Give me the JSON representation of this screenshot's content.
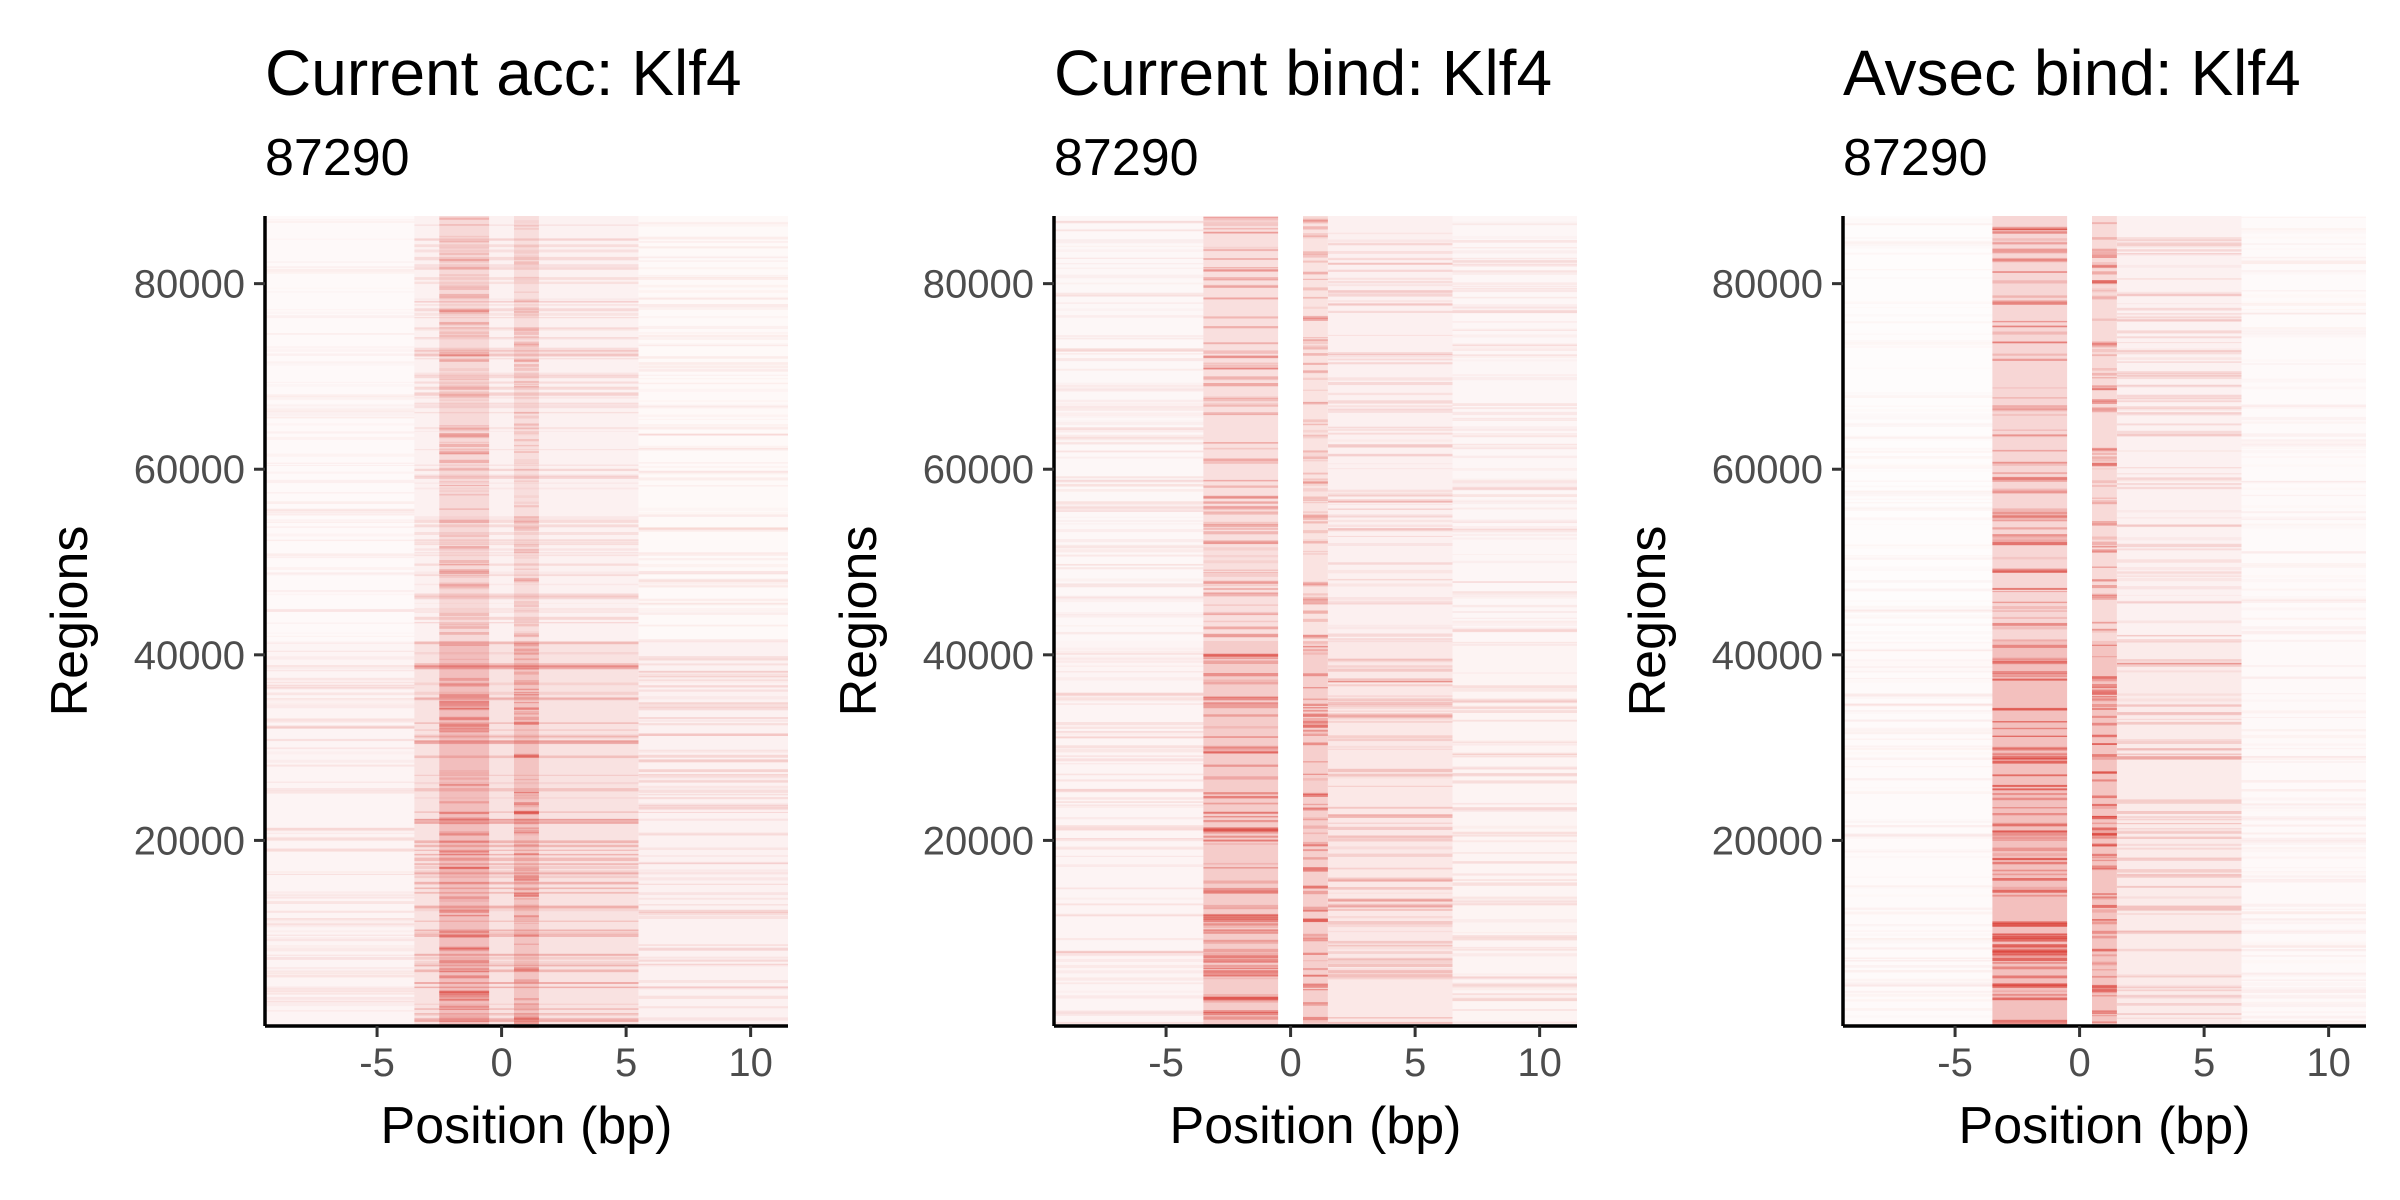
{
  "chart_data": [
    {
      "type": "heatmap",
      "title": "Current acc: Klf4",
      "subtitle": "87290",
      "xlabel": "Position (bp)",
      "ylabel": "Regions",
      "xlim": [
        -9.5,
        11.5
      ],
      "ylim": [
        0,
        87290
      ],
      "x_ticks": [
        -5,
        0,
        5,
        10
      ],
      "x_tick_labels": [
        "-5",
        "0",
        "5",
        "10"
      ],
      "y_ticks": [
        20000,
        40000,
        60000,
        80000
      ],
      "y_tick_labels": [
        "20000",
        "40000",
        "60000",
        "80000"
      ],
      "color": "#d73027",
      "blocks": [
        {
          "y": [
            0,
            41500
          ],
          "x": [
            -3.5,
            5.5
          ],
          "intensity": 0.26
        },
        {
          "y": [
            0,
            41500
          ],
          "x": [
            -2.5,
            -0.5
          ],
          "intensity": 0.36
        },
        {
          "y": [
            0,
            41500
          ],
          "x": [
            0.5,
            1.5
          ],
          "intensity": 0.3
        },
        {
          "y": [
            0,
            41500
          ],
          "x": [
            5.5,
            11.5
          ],
          "intensity": 0.12
        },
        {
          "y": [
            0,
            41500
          ],
          "x": [
            -9.5,
            -3.5
          ],
          "intensity": 0.09
        },
        {
          "y": [
            41500,
            87290
          ],
          "x": [
            -3.5,
            5.5
          ],
          "intensity": 0.12
        },
        {
          "y": [
            41500,
            87290
          ],
          "x": [
            -2.5,
            -0.5
          ],
          "intensity": 0.22
        },
        {
          "y": [
            41500,
            87290
          ],
          "x": [
            0.5,
            1.5
          ],
          "intensity": 0.18
        },
        {
          "y": [
            41500,
            87290
          ],
          "x": [
            5.5,
            11.5
          ],
          "intensity": 0.06
        },
        {
          "y": [
            41500,
            87290
          ],
          "x": [
            -9.5,
            -3.5
          ],
          "intensity": 0.05
        }
      ]
    },
    {
      "type": "heatmap",
      "title": "Current bind: Klf4",
      "subtitle": "87290",
      "xlabel": "Position (bp)",
      "ylabel": "Regions",
      "xlim": [
        -9.5,
        11.5
      ],
      "ylim": [
        0,
        87290
      ],
      "x_ticks": [
        -5,
        0,
        5,
        10
      ],
      "x_tick_labels": [
        "-5",
        "0",
        "5",
        "10"
      ],
      "y_ticks": [
        20000,
        40000,
        60000,
        80000
      ],
      "y_tick_labels": [
        "20000",
        "40000",
        "60000",
        "80000"
      ],
      "color": "#d73027",
      "blocks": [
        {
          "y": [
            0,
            41500
          ],
          "x": [
            -3.5,
            -0.5
          ],
          "intensity": 0.45
        },
        {
          "y": [
            0,
            41500
          ],
          "x": [
            0.5,
            1.5
          ],
          "intensity": 0.42
        },
        {
          "y": [
            0,
            41500
          ],
          "x": [
            1.5,
            6.5
          ],
          "intensity": 0.2
        },
        {
          "y": [
            0,
            41500
          ],
          "x": [
            6.5,
            11.5
          ],
          "intensity": 0.1
        },
        {
          "y": [
            0,
            41500
          ],
          "x": [
            -9.5,
            -3.5
          ],
          "intensity": 0.09
        },
        {
          "y": [
            41500,
            87290
          ],
          "x": [
            -3.5,
            -0.5
          ],
          "intensity": 0.28
        },
        {
          "y": [
            41500,
            87290
          ],
          "x": [
            0.5,
            1.5
          ],
          "intensity": 0.25
        },
        {
          "y": [
            41500,
            87290
          ],
          "x": [
            1.5,
            6.5
          ],
          "intensity": 0.13
        },
        {
          "y": [
            41500,
            87290
          ],
          "x": [
            6.5,
            11.5
          ],
          "intensity": 0.08
        },
        {
          "y": [
            41500,
            87290
          ],
          "x": [
            -9.5,
            -3.5
          ],
          "intensity": 0.07
        }
      ]
    },
    {
      "type": "heatmap",
      "title": "Avsec bind: Klf4",
      "subtitle": "87290",
      "xlabel": "Position (bp)",
      "ylabel": "Regions",
      "xlim": [
        -9.5,
        11.5
      ],
      "ylim": [
        0,
        87290
      ],
      "x_ticks": [
        -5,
        0,
        5,
        10
      ],
      "x_tick_labels": [
        "-5",
        "0",
        "5",
        "10"
      ],
      "y_ticks": [
        20000,
        40000,
        60000,
        80000
      ],
      "y_tick_labels": [
        "20000",
        "40000",
        "60000",
        "80000"
      ],
      "color": "#d73027",
      "blocks": [
        {
          "y": [
            0,
            41500
          ],
          "x": [
            -3.5,
            -0.5
          ],
          "intensity": 0.55
        },
        {
          "y": [
            0,
            41500
          ],
          "x": [
            0.5,
            1.5
          ],
          "intensity": 0.52
        },
        {
          "y": [
            0,
            41500
          ],
          "x": [
            1.5,
            6.5
          ],
          "intensity": 0.18
        },
        {
          "y": [
            0,
            41500
          ],
          "x": [
            6.5,
            11.5
          ],
          "intensity": 0.05
        },
        {
          "y": [
            0,
            41500
          ],
          "x": [
            -9.5,
            -3.5
          ],
          "intensity": 0.04
        },
        {
          "y": [
            41500,
            87290
          ],
          "x": [
            -3.5,
            -0.5
          ],
          "intensity": 0.36
        },
        {
          "y": [
            41500,
            87290
          ],
          "x": [
            0.5,
            1.5
          ],
          "intensity": 0.33
        },
        {
          "y": [
            41500,
            87290
          ],
          "x": [
            1.5,
            6.5
          ],
          "intensity": 0.12
        },
        {
          "y": [
            41500,
            87290
          ],
          "x": [
            6.5,
            11.5
          ],
          "intensity": 0.04
        },
        {
          "y": [
            41500,
            87290
          ],
          "x": [
            -9.5,
            -3.5
          ],
          "intensity": 0.03
        }
      ]
    }
  ]
}
